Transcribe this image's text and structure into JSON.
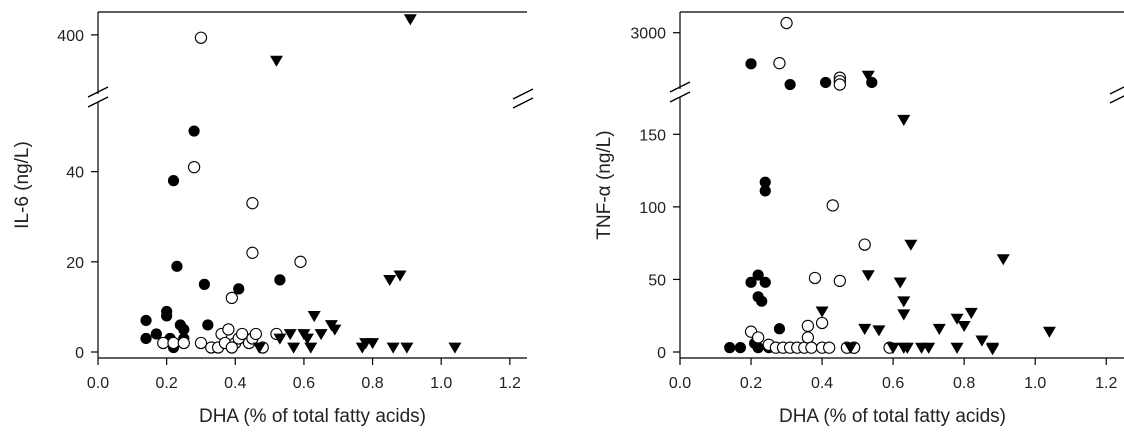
{
  "chart_data": [
    {
      "type": "scatter",
      "xlabel": "DHA (% of total fatty acids)",
      "ylabel": "IL-6 (ng/L)",
      "xlim": [
        0,
        1.25
      ],
      "x_ticks": [
        "0.0",
        "0.2",
        "0.4",
        "0.6",
        "0.8",
        "1.0",
        "1.2"
      ],
      "y_ticks_lower": [
        "0",
        "20",
        "40"
      ],
      "y_ticks_upper": [
        "400"
      ],
      "ylim_lower": [
        0,
        55
      ],
      "ylim_upper": [
        200,
        480
      ],
      "axis_break": true,
      "series": [
        {
          "marker": "filled-circle",
          "points": [
            [
              0.14,
              7
            ],
            [
              0.14,
              3
            ],
            [
              0.17,
              4
            ],
            [
              0.2,
              9
            ],
            [
              0.2,
              8
            ],
            [
              0.21,
              3
            ],
            [
              0.22,
              1
            ],
            [
              0.22,
              38
            ],
            [
              0.23,
              19
            ],
            [
              0.24,
              6
            ],
            [
              0.25,
              5
            ],
            [
              0.28,
              49
            ],
            [
              0.31,
              15
            ],
            [
              0.32,
              6
            ],
            [
              0.41,
              14
            ],
            [
              0.43,
              3
            ],
            [
              0.53,
              16
            ],
            [
              0.25,
              3
            ]
          ]
        },
        {
          "marker": "open-circle",
          "points": [
            [
              0.19,
              2
            ],
            [
              0.22,
              2
            ],
            [
              0.25,
              2
            ],
            [
              0.28,
              41
            ],
            [
              0.3,
              390
            ],
            [
              0.3,
              2
            ],
            [
              0.33,
              1
            ],
            [
              0.35,
              1
            ],
            [
              0.36,
              4
            ],
            [
              0.37,
              2
            ],
            [
              0.38,
              5
            ],
            [
              0.39,
              12
            ],
            [
              0.4,
              2
            ],
            [
              0.41,
              3
            ],
            [
              0.42,
              4
            ],
            [
              0.44,
              2
            ],
            [
              0.45,
              33
            ],
            [
              0.45,
              22
            ],
            [
              0.45,
              3
            ],
            [
              0.46,
              4
            ],
            [
              0.48,
              1
            ],
            [
              0.52,
              4
            ],
            [
              0.59,
              20
            ],
            [
              0.39,
              1
            ]
          ]
        },
        {
          "marker": "filled-triangle-down",
          "points": [
            [
              0.52,
              310
            ],
            [
              0.53,
              3
            ],
            [
              0.56,
              4
            ],
            [
              0.57,
              1
            ],
            [
              0.6,
              4
            ],
            [
              0.61,
              3
            ],
            [
              0.63,
              8
            ],
            [
              0.65,
              4
            ],
            [
              0.68,
              6
            ],
            [
              0.69,
              5
            ],
            [
              0.77,
              1
            ],
            [
              0.78,
              2
            ],
            [
              0.8,
              2
            ],
            [
              0.85,
              16
            ],
            [
              0.86,
              1
            ],
            [
              0.88,
              17
            ],
            [
              0.9,
              1
            ],
            [
              0.91,
              455
            ],
            [
              1.04,
              1
            ],
            [
              0.62,
              1
            ],
            [
              0.47,
              1
            ]
          ]
        }
      ]
    },
    {
      "type": "scatter",
      "xlabel": "DHA (% of total fatty acids)",
      "ylabel": "TNF-α (ng/L)",
      "xlim": [
        0,
        1.25
      ],
      "x_ticks": [
        "0.0",
        "0.2",
        "0.4",
        "0.6",
        "0.8",
        "1.0",
        "1.2"
      ],
      "y_ticks_lower": [
        "0",
        "50",
        "100",
        "150"
      ],
      "y_ticks_upper": [
        "3000"
      ],
      "ylim_lower": [
        0,
        175
      ],
      "ylim_upper": [
        2200,
        3300
      ],
      "axis_break": true,
      "series": [
        {
          "marker": "filled-circle",
          "points": [
            [
              0.14,
              3
            ],
            [
              0.17,
              3
            ],
            [
              0.2,
              48
            ],
            [
              0.21,
              6
            ],
            [
              0.22,
              53
            ],
            [
              0.22,
              38
            ],
            [
              0.23,
              35
            ],
            [
              0.24,
              117
            ],
            [
              0.24,
              111
            ],
            [
              0.24,
              48
            ],
            [
              0.25,
              3
            ],
            [
              0.22,
              3
            ],
            [
              0.28,
              16
            ],
            [
              0.2,
              2550
            ],
            [
              0.31,
              2250
            ],
            [
              0.41,
              2280
            ],
            [
              0.54,
              2280
            ]
          ]
        },
        {
          "marker": "open-circle",
          "points": [
            [
              0.2,
              14
            ],
            [
              0.22,
              10
            ],
            [
              0.25,
              5
            ],
            [
              0.27,
              3
            ],
            [
              0.29,
              3
            ],
            [
              0.3,
              3140
            ],
            [
              0.28,
              2560
            ],
            [
              0.31,
              3
            ],
            [
              0.33,
              3
            ],
            [
              0.35,
              3
            ],
            [
              0.36,
              18
            ],
            [
              0.36,
              10
            ],
            [
              0.37,
              3
            ],
            [
              0.38,
              51
            ],
            [
              0.4,
              20
            ],
            [
              0.4,
              3
            ],
            [
              0.42,
              3
            ],
            [
              0.43,
              101
            ],
            [
              0.45,
              49
            ],
            [
              0.45,
              2350
            ],
            [
              0.45,
              2300
            ],
            [
              0.45,
              2250
            ],
            [
              0.47,
              3
            ],
            [
              0.49,
              3
            ],
            [
              0.52,
              74
            ],
            [
              0.59,
              3
            ],
            [
              0.49,
              3
            ]
          ]
        },
        {
          "marker": "filled-triangle-down",
          "points": [
            [
              0.4,
              28
            ],
            [
              0.48,
              3
            ],
            [
              0.52,
              16
            ],
            [
              0.53,
              53
            ],
            [
              0.53,
              2380
            ],
            [
              0.56,
              15
            ],
            [
              0.62,
              48
            ],
            [
              0.63,
              35
            ],
            [
              0.63,
              26
            ],
            [
              0.63,
              3
            ],
            [
              0.64,
              3
            ],
            [
              0.63,
              160
            ],
            [
              0.65,
              74
            ],
            [
              0.68,
              3
            ],
            [
              0.7,
              3
            ],
            [
              0.73,
              16
            ],
            [
              0.78,
              23
            ],
            [
              0.78,
              3
            ],
            [
              0.8,
              18
            ],
            [
              0.82,
              27
            ],
            [
              0.85,
              8
            ],
            [
              0.88,
              3
            ],
            [
              0.91,
              64
            ],
            [
              0.88,
              2
            ],
            [
              1.04,
              14
            ],
            [
              0.6,
              3
            ]
          ]
        }
      ]
    }
  ]
}
